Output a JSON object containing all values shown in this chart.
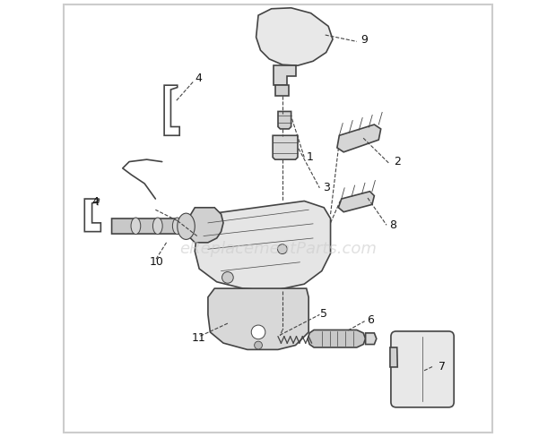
{
  "background_color": "#ffffff",
  "border_color": "#cccccc",
  "border_linewidth": 1.5,
  "watermark_text": "eReplacementParts.com",
  "watermark_color": "#cccccc",
  "watermark_fontsize": 13,
  "line_color": "#444444",
  "line_width": 1.2,
  "label_fontsize": 9,
  "label_color": "#111111"
}
